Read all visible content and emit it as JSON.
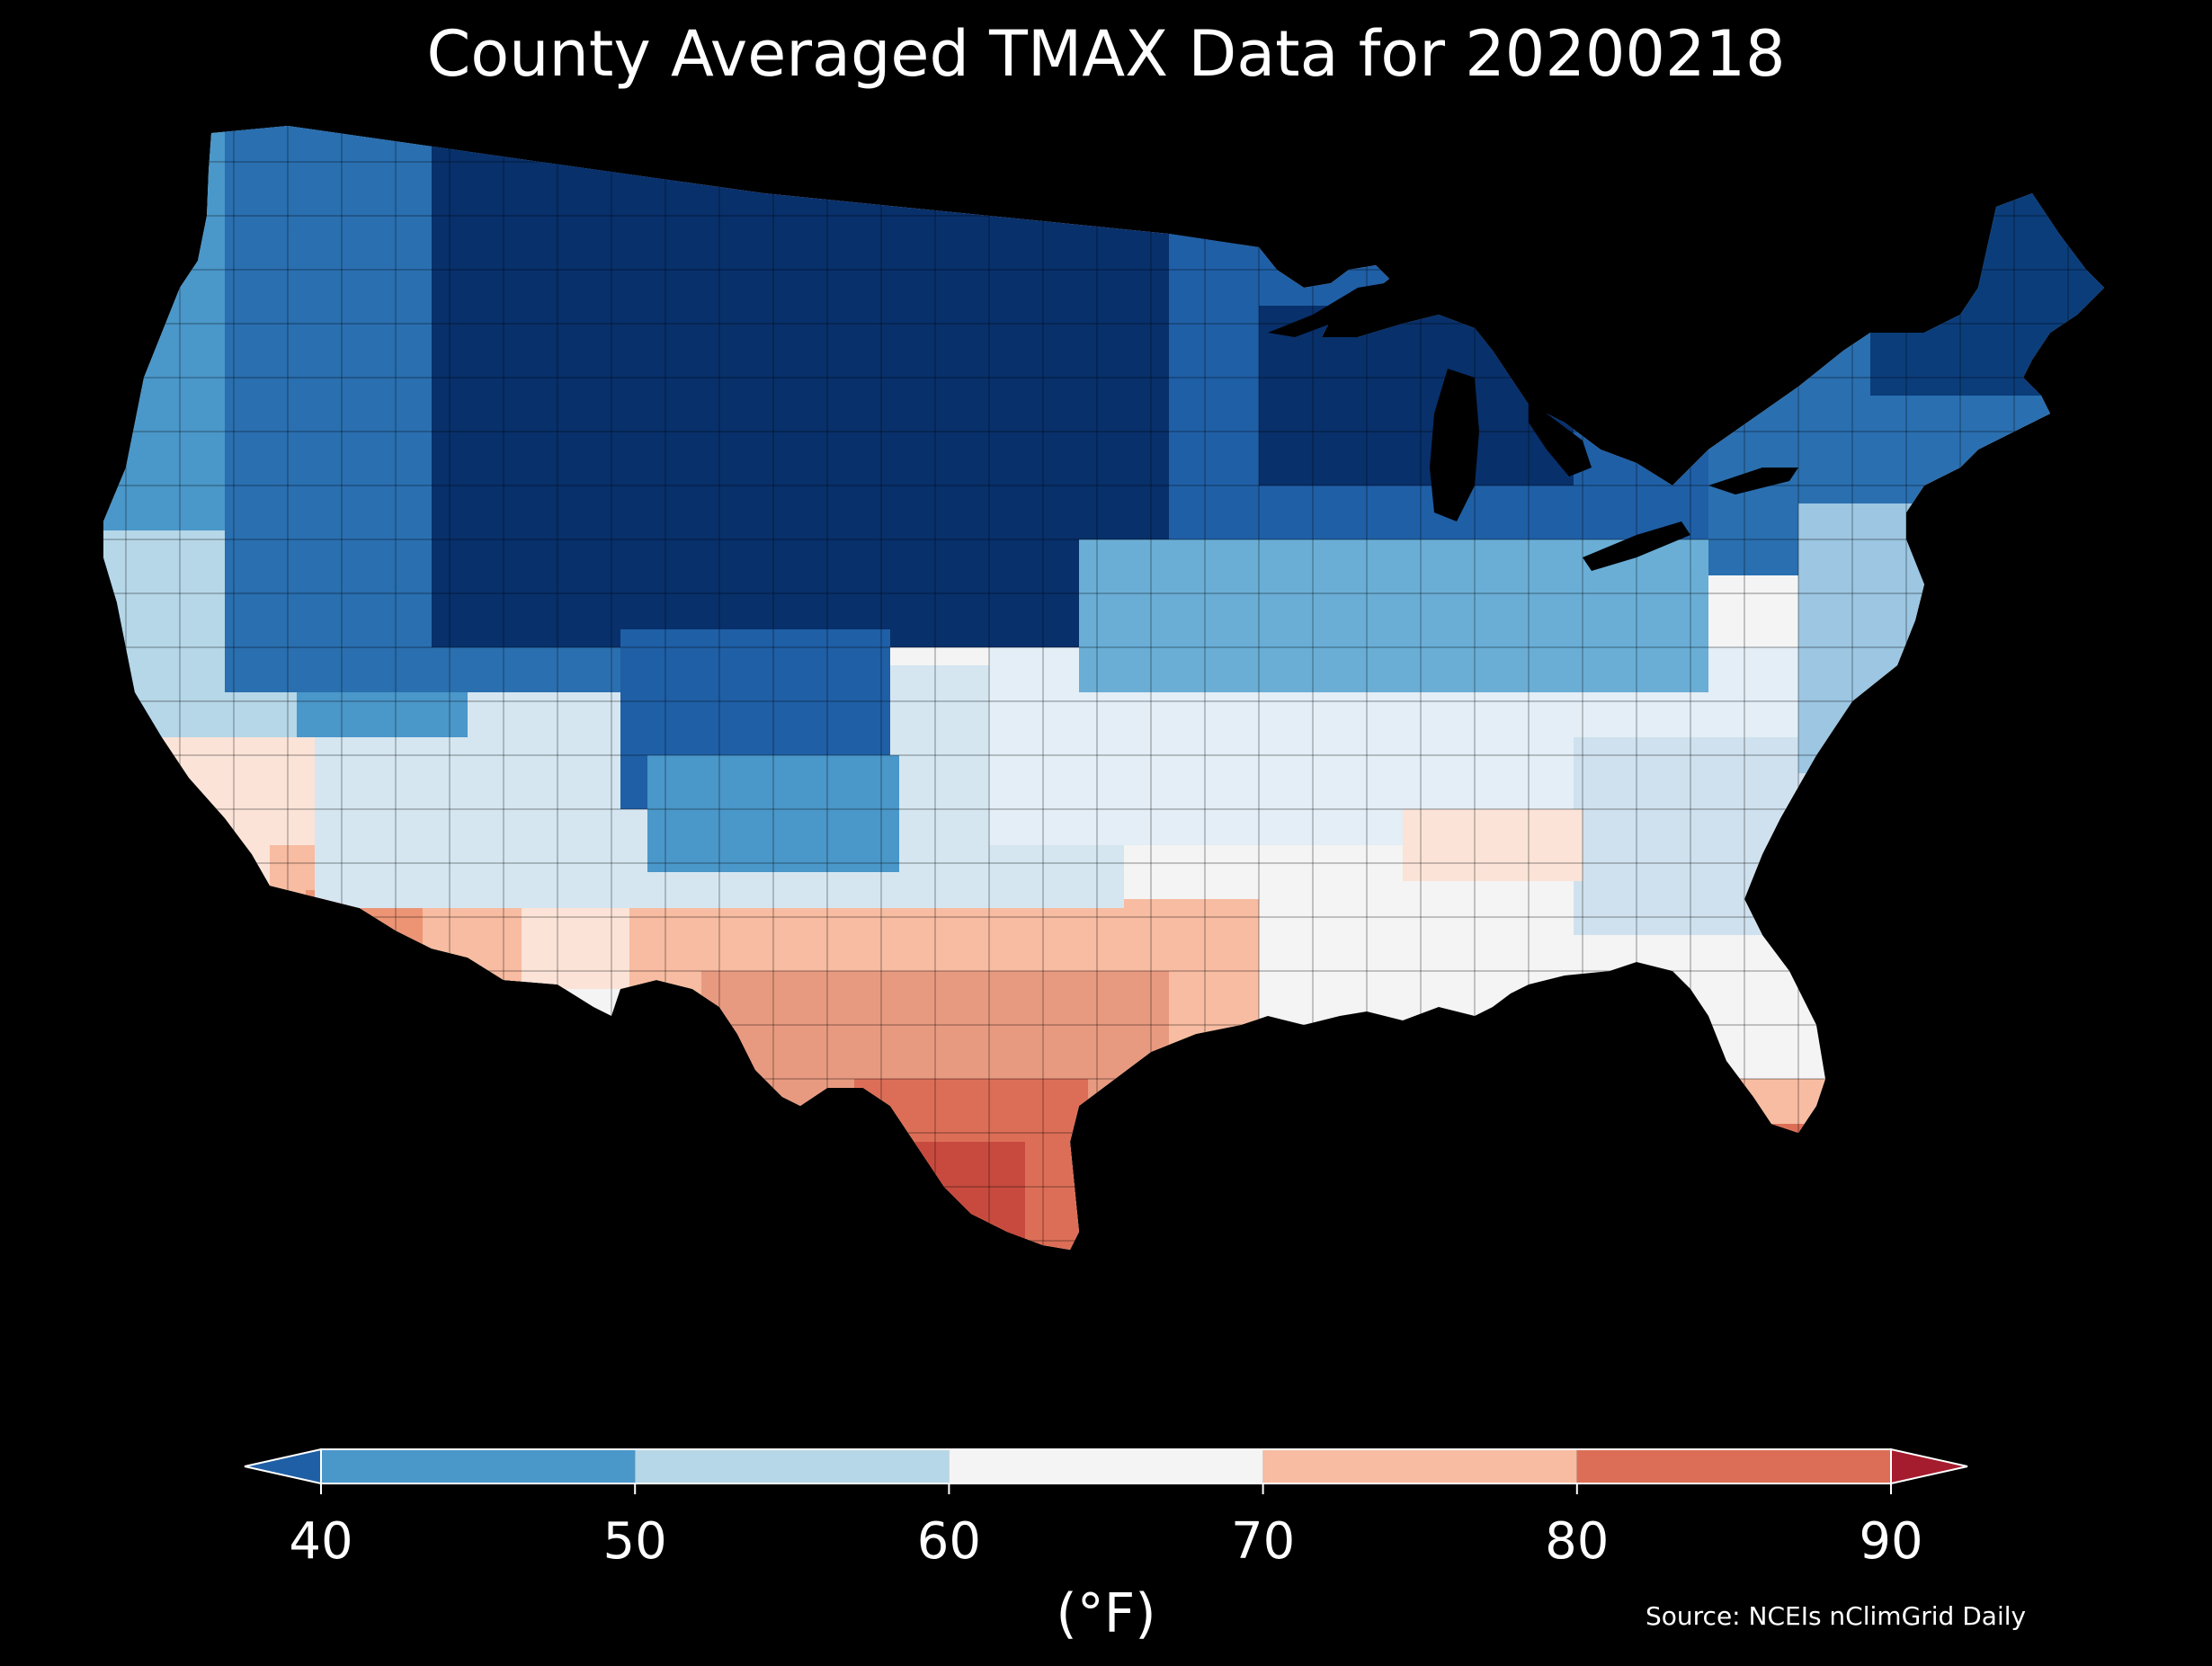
{
  "title": "County Averaged TMAX Data for 20200218",
  "colorbar": {
    "unit": "(°F)",
    "ticks": [
      "40",
      "50",
      "60",
      "70",
      "80",
      "90"
    ],
    "bins": [
      {
        "from": 40,
        "to": 50,
        "color": "#4a97c9"
      },
      {
        "from": 50,
        "to": 60,
        "color": "#b6d7e8"
      },
      {
        "from": 60,
        "to": 70,
        "color": "#f4f4f4"
      },
      {
        "from": 70,
        "to": 80,
        "color": "#f7bca1"
      },
      {
        "from": 80,
        "to": 90,
        "color": "#dc6e57"
      }
    ],
    "under_color": "#1f5fa6",
    "over_color": "#a51c2f"
  },
  "source": "Source: NCEIs nClimGrid Daily",
  "map": {
    "region": "Contiguous United States",
    "variable": "TMAX",
    "date": "20200218",
    "background_color": "#000000",
    "regional_colors": {
      "northern_plains_rockies": "#08306b",
      "pacific_northwest": "#4a97c9",
      "upper_midwest_great_lakes": "#1f5fa6",
      "northeast": "#2a6fb0",
      "central_plains_midwest": "#dce9f3",
      "desert_southwest": "#f7bca1",
      "texas": "#dc6e57",
      "south_texas": "#c84a3e",
      "florida": "#dc6e57",
      "southeast": "#f4f4f4"
    }
  }
}
